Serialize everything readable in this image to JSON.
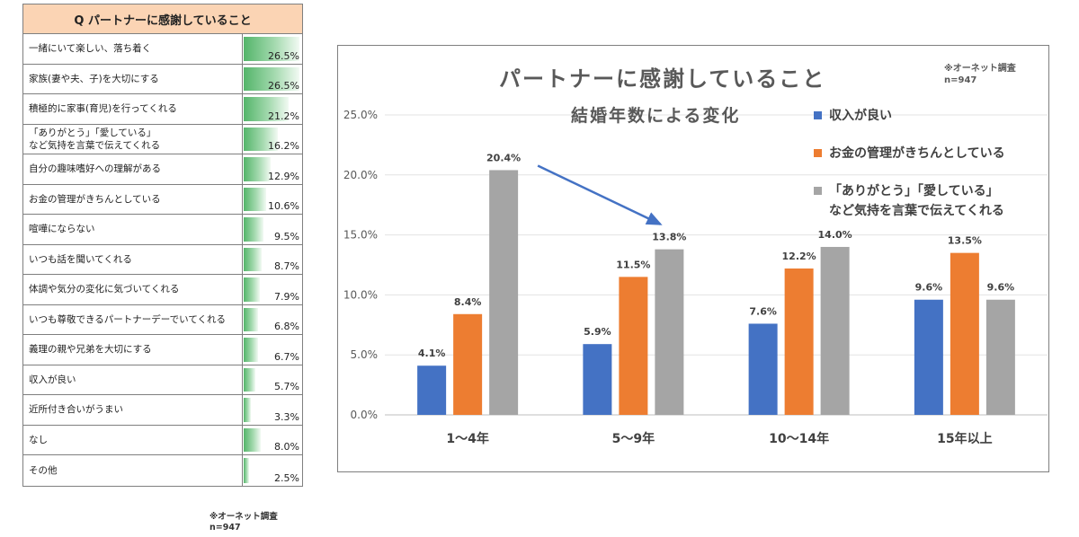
{
  "table": {
    "header": "Q パートナーに感謝していること",
    "rows": [
      {
        "label": "一緒にいて楽しい、落ち着く",
        "value": 26.5,
        "value_text": "26.5%"
      },
      {
        "label": "家族(妻や夫、子)を大切にする",
        "value": 26.5,
        "value_text": "26.5%"
      },
      {
        "label": "積極的に家事(育児)を行ってくれる",
        "value": 21.2,
        "value_text": "21.2%"
      },
      {
        "label": "「ありがとう」「愛している」\nなど気持を言葉で伝えてくれる",
        "value": 16.2,
        "value_text": "16.2%"
      },
      {
        "label": "自分の趣味嗜好への理解がある",
        "value": 12.9,
        "value_text": "12.9%"
      },
      {
        "label": "お金の管理がきちんとしている",
        "value": 10.6,
        "value_text": "10.6%"
      },
      {
        "label": "喧嘩にならない",
        "value": 9.5,
        "value_text": "9.5%"
      },
      {
        "label": "いつも話を聞いてくれる",
        "value": 8.7,
        "value_text": "8.7%"
      },
      {
        "label": "体調や気分の変化に気づいてくれる",
        "value": 7.9,
        "value_text": "7.9%"
      },
      {
        "label": "いつも尊敬できるパートナーデーでいてくれる",
        "value": 6.8,
        "value_text": "6.8%"
      },
      {
        "label": "義理の親や兄弟を大切にする",
        "value": 6.7,
        "value_text": "6.7%"
      },
      {
        "label": "収入が良い",
        "value": 5.7,
        "value_text": "5.7%"
      },
      {
        "label": "近所付き合いがうまい",
        "value": 3.3,
        "value_text": "3.3%"
      },
      {
        "label": "なし",
        "value": 8.0,
        "value_text": "8.0%"
      },
      {
        "label": "その他",
        "value": 2.5,
        "value_text": "2.5%"
      }
    ],
    "note_line1": "※オーネット調査",
    "note_line2": "n=947"
  },
  "chart_data": {
    "type": "bar",
    "title": "パートナーに感謝していること",
    "subtitle": "結婚年数による変化",
    "note_line1": "※オーネット調査",
    "note_line2": "n=947",
    "categories": [
      "1～4年",
      "5～9年",
      "10～14年",
      "15年以上"
    ],
    "ylim": [
      0,
      25
    ],
    "yticks": [
      "0.0%",
      "5.0%",
      "10.0%",
      "15.0%",
      "20.0%",
      "25.0%"
    ],
    "grid": true,
    "legend_position": "top-right",
    "series": [
      {
        "name": "収入が良い",
        "color": "#4472c4",
        "values": [
          4.1,
          5.9,
          7.6,
          9.6
        ],
        "labels": [
          "4.1%",
          "5.9%",
          "7.6%",
          "9.6%"
        ]
      },
      {
        "name": "お金の管理がきちんとしている",
        "color": "#ed7d31",
        "values": [
          8.4,
          11.5,
          12.2,
          13.5
        ],
        "labels": [
          "8.4%",
          "11.5%",
          "12.2%",
          "13.5%"
        ]
      },
      {
        "name": "「ありがとう」「愛している」\nなど気持を言葉で伝えてくれる",
        "color": "#a5a5a5",
        "values": [
          20.4,
          13.8,
          14.0,
          9.6
        ],
        "labels": [
          "20.4%",
          "13.8%",
          "14.0%",
          "9.6%"
        ]
      }
    ],
    "annotation": {
      "type": "arrow",
      "color": "#4472c4"
    }
  }
}
